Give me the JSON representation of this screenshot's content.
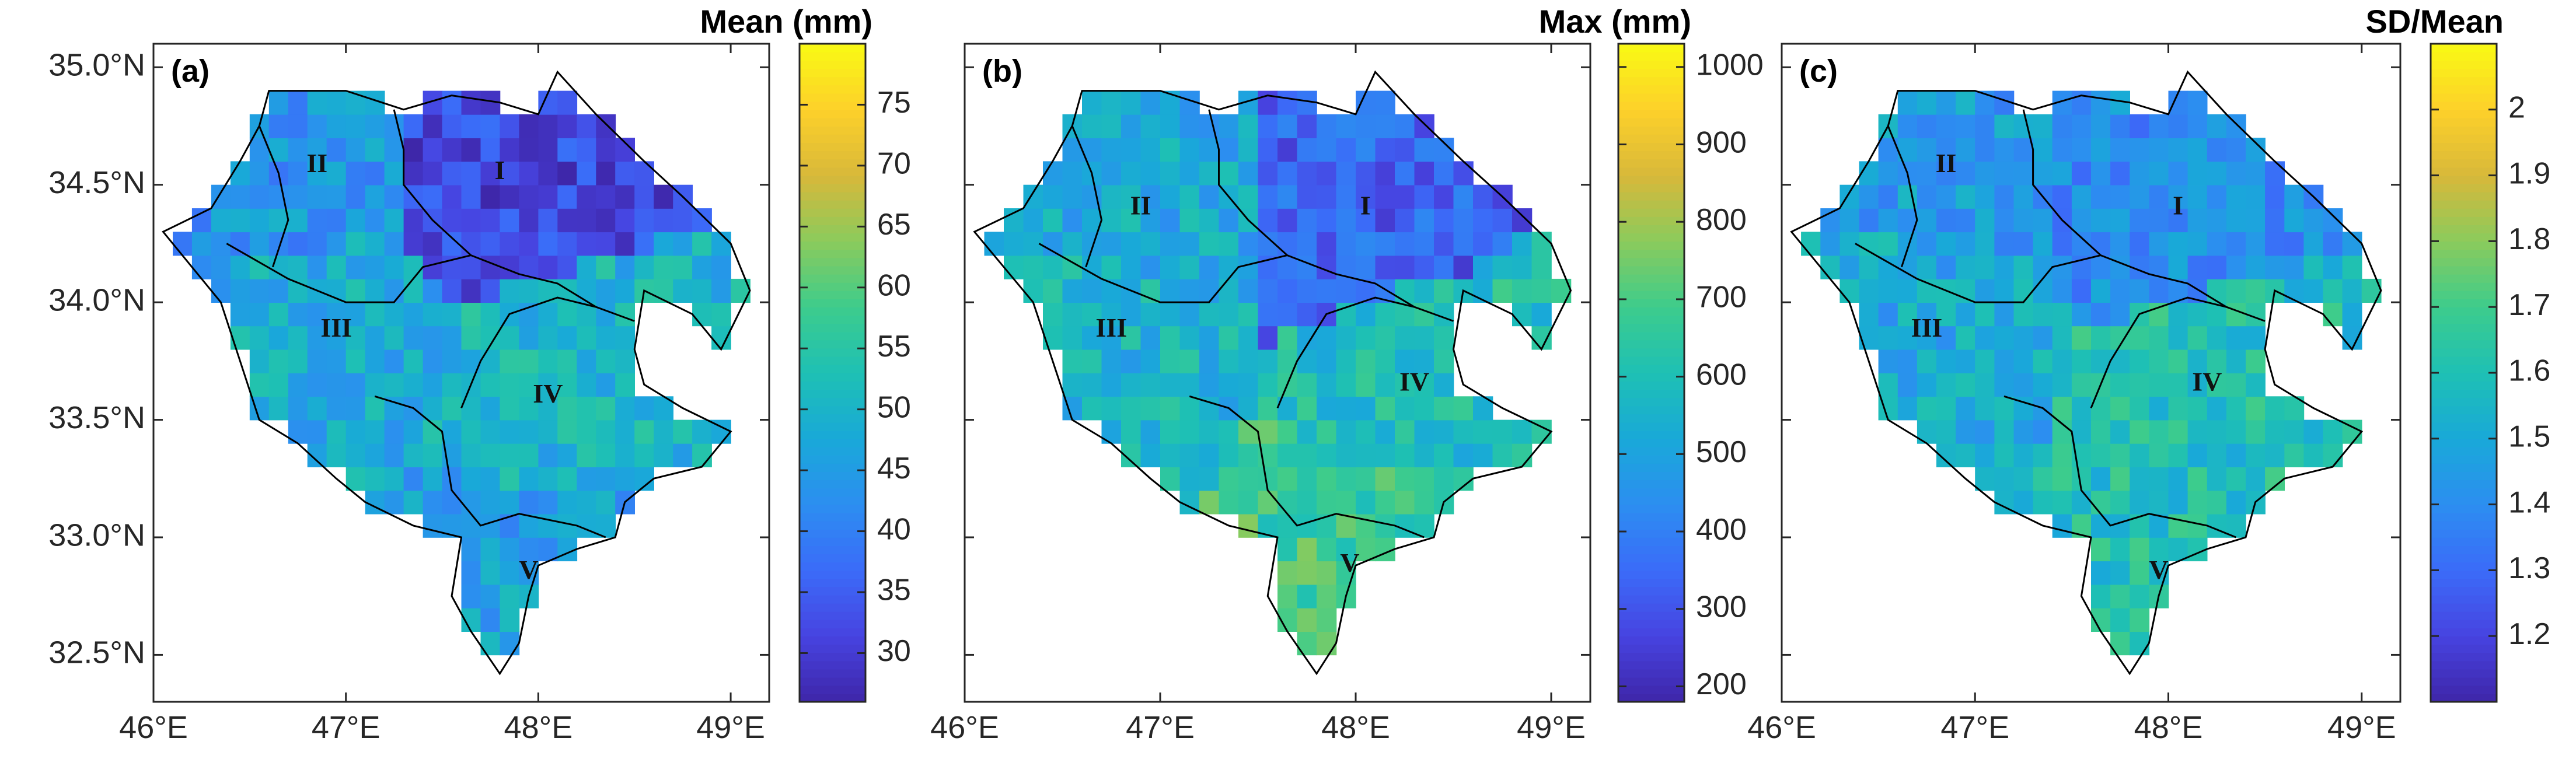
{
  "colormap": [
    "#3e26a8",
    "#4743e0",
    "#3b6bf8",
    "#2c8ef0",
    "#19a9d8",
    "#1ec0b4",
    "#3dcc8c",
    "#8bcb5c",
    "#d8b83a",
    "#fdd02a",
    "#f9fa14"
  ],
  "axes": {
    "x_ticks": [
      "46°E",
      "47°E",
      "48°E",
      "49°E"
    ],
    "y_ticks": [
      "35.0°N",
      "34.5°N",
      "34.0°N",
      "33.5°N",
      "33.0°N",
      "32.5°N"
    ]
  },
  "chart_data": [
    {
      "type": "heatmap",
      "panel_label": "(a)",
      "colorbar_title": "Mean (mm)",
      "colorbar_range": [
        26,
        80
      ],
      "colorbar_ticks": [
        "30",
        "35",
        "40",
        "45",
        "50",
        "55",
        "60",
        "65",
        "70",
        "75"
      ],
      "xlim": [
        46,
        49.2
      ],
      "ylim": [
        32.3,
        35.1
      ],
      "regions": [
        {
          "label": "I",
          "lon": 47.8,
          "lat": 34.55,
          "value": 32
        },
        {
          "label": "II",
          "lon": 46.85,
          "lat": 34.58,
          "value": 44
        },
        {
          "label": "III",
          "lon": 46.95,
          "lat": 33.88,
          "value": 48
        },
        {
          "label": "IV",
          "lon": 48.05,
          "lat": 33.6,
          "value": 50
        },
        {
          "label": "V",
          "lon": 47.95,
          "lat": 32.85,
          "value": 46
        }
      ]
    },
    {
      "type": "heatmap",
      "panel_label": "(b)",
      "colorbar_title": "Max (mm)",
      "colorbar_range": [
        180,
        1030
      ],
      "colorbar_ticks": [
        "200",
        "300",
        "400",
        "500",
        "600",
        "700",
        "800",
        "900",
        "1000"
      ],
      "xlim": [
        46,
        49.2
      ],
      "ylim": [
        32.3,
        35.1
      ],
      "regions": [
        {
          "label": "I",
          "lon": 48.05,
          "lat": 34.4,
          "value": 330
        },
        {
          "label": "II",
          "lon": 46.9,
          "lat": 34.4,
          "value": 520
        },
        {
          "label": "III",
          "lon": 46.75,
          "lat": 33.88,
          "value": 560
        },
        {
          "label": "IV",
          "lon": 48.3,
          "lat": 33.65,
          "value": 600
        },
        {
          "label": "V",
          "lon": 47.97,
          "lat": 32.88,
          "value": 680
        }
      ]
    },
    {
      "type": "heatmap",
      "panel_label": "(c)",
      "colorbar_title": "SD/Mean",
      "colorbar_range": [
        1.1,
        2.1
      ],
      "colorbar_ticks": [
        "1.2",
        "1.3",
        "1.4",
        "1.5",
        "1.6",
        "1.7",
        "1.8",
        "1.9",
        "2"
      ],
      "xlim": [
        46,
        49.2
      ],
      "ylim": [
        32.3,
        35.1
      ],
      "regions": [
        {
          "label": "I",
          "lon": 48.05,
          "lat": 34.4,
          "value": 1.4
        },
        {
          "label": "II",
          "lon": 46.85,
          "lat": 34.58,
          "value": 1.45
        },
        {
          "label": "III",
          "lon": 46.75,
          "lat": 33.88,
          "value": 1.5
        },
        {
          "label": "IV",
          "lon": 48.2,
          "lat": 33.65,
          "value": 1.6
        },
        {
          "label": "V",
          "lon": 47.95,
          "lat": 32.85,
          "value": 1.6
        }
      ]
    }
  ]
}
